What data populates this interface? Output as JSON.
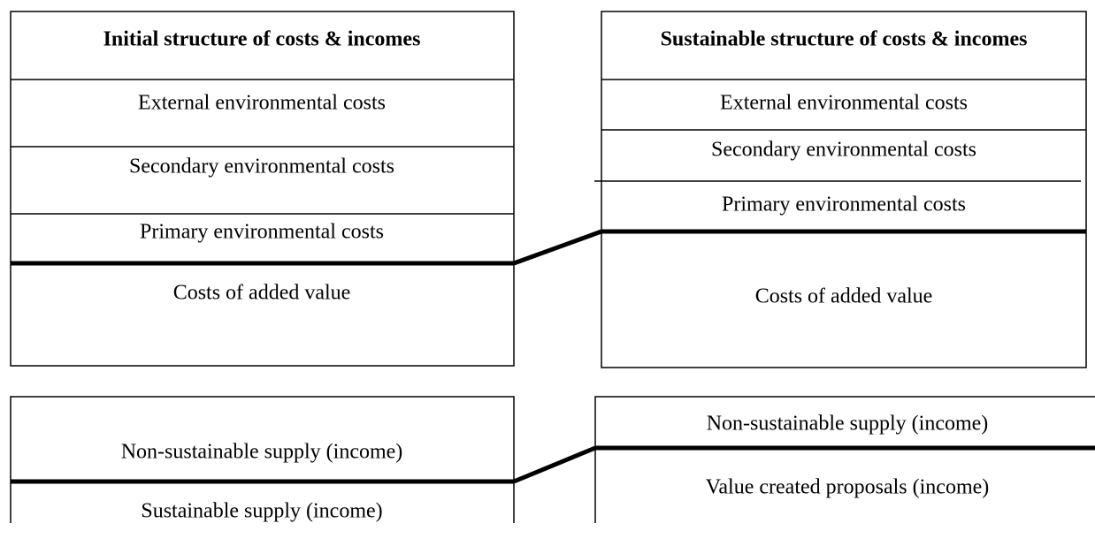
{
  "initial_structure": {
    "title": "Initial structure of costs & incomes",
    "costs": [
      "External environmental costs",
      "Secondary environmental costs",
      "Primary environmental costs",
      "Costs of added value"
    ],
    "incomes": [
      "Non-sustainable supply (income)",
      "Sustainable supply (income)"
    ]
  },
  "sustainable_structure": {
    "title": "Sustainable structure of costs & incomes",
    "costs": [
      "External environmental costs",
      "Secondary environmental costs",
      "Primary environmental costs",
      "Costs of added value"
    ],
    "incomes": [
      "Non-sustainable supply (income)",
      "Value created proposals (income)"
    ]
  }
}
